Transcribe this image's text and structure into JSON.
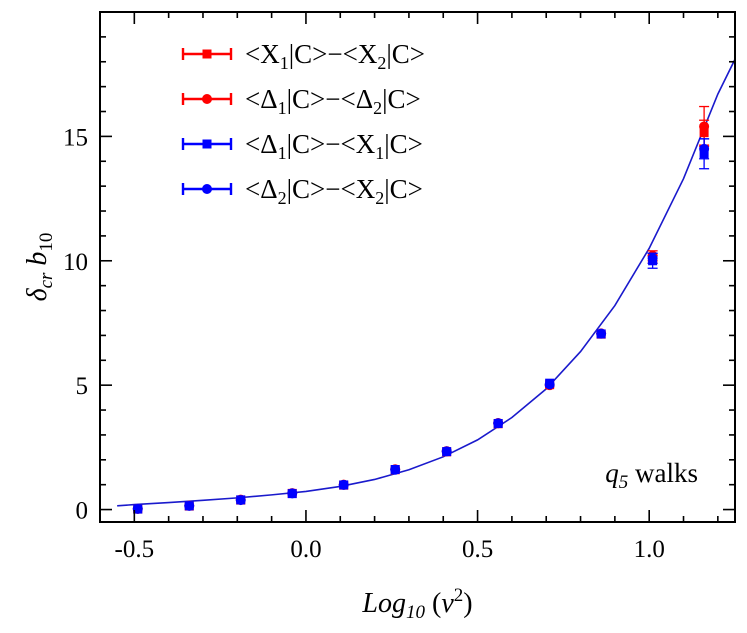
{
  "chart_data": {
    "type": "scatter",
    "title": "",
    "xlabel": "Log10 (ν²)",
    "ylabel": "δcr b10",
    "xlim": [
      -0.6,
      1.25
    ],
    "ylim": [
      -0.5,
      20
    ],
    "xticks": [
      -0.5,
      0.0,
      0.5,
      1.0
    ],
    "xtick_labels": [
      "-0.5",
      "0.0",
      "0.5",
      "1.0"
    ],
    "yticks": [
      0,
      5,
      10,
      15
    ],
    "ytick_labels": [
      "0",
      "5",
      "10",
      "15"
    ],
    "legend_position": "top-left",
    "annotation": "q5 walks",
    "fit_curve": {
      "name": "fit",
      "color": "#1a1acc",
      "x": [
        -0.55,
        -0.5,
        -0.4,
        -0.3,
        -0.2,
        -0.1,
        0.0,
        0.1,
        0.2,
        0.3,
        0.4,
        0.5,
        0.6,
        0.7,
        0.8,
        0.9,
        1.0,
        1.1,
        1.2,
        1.25
      ],
      "y": [
        0.15,
        0.2,
        0.28,
        0.37,
        0.47,
        0.59,
        0.73,
        0.93,
        1.21,
        1.6,
        2.12,
        2.8,
        3.7,
        4.85,
        6.35,
        8.2,
        10.5,
        13.3,
        16.7,
        18.1
      ]
    },
    "series": [
      {
        "name": "<X1|C>−<X2|C>",
        "legend_parts": {
          "pre": "<X",
          "sub1": "1",
          "mid": "|C>−<X",
          "sub2": "2",
          "post": "|C>"
        },
        "color": "#ff0000",
        "marker": "square",
        "x": [
          -0.49,
          -0.34,
          -0.19,
          -0.04,
          0.11,
          0.26,
          0.41,
          0.56,
          0.71,
          0.86,
          1.01,
          1.16
        ],
        "y": [
          0.02,
          0.14,
          0.38,
          0.65,
          0.98,
          1.6,
          2.32,
          3.45,
          5.02,
          7.05,
          10.05,
          15.15
        ],
        "err": [
          0,
          0,
          0,
          0,
          0,
          0,
          0,
          0,
          0,
          0,
          0.15,
          0.5
        ]
      },
      {
        "name": "<Δ1|C>−<Δ2|C>",
        "legend_parts": {
          "pre": "<Δ",
          "sub1": "1",
          "mid": "|C>−<Δ",
          "sub2": "2",
          "post": "|C>"
        },
        "color": "#ff0000",
        "marker": "circle",
        "x": [
          -0.49,
          -0.34,
          -0.19,
          -0.04,
          0.11,
          0.26,
          0.41,
          0.56,
          0.71,
          0.86,
          1.01,
          1.16
        ],
        "y": [
          0.03,
          0.16,
          0.4,
          0.66,
          1.0,
          1.62,
          2.35,
          3.48,
          5.0,
          7.08,
          10.2,
          15.4
        ],
        "err": [
          0,
          0,
          0,
          0,
          0,
          0,
          0,
          0,
          0,
          0,
          0.2,
          0.8
        ]
      },
      {
        "name": "<Δ1|C>−<X1|C>",
        "legend_parts": {
          "pre": "<Δ",
          "sub1": "1",
          "mid": "|C>−<X",
          "sub2": "1",
          "post": "|C>"
        },
        "color": "#0000ff",
        "marker": "square",
        "x": [
          -0.49,
          -0.34,
          -0.19,
          -0.04,
          0.11,
          0.26,
          0.41,
          0.56,
          0.71,
          0.86,
          1.01,
          1.16
        ],
        "y": [
          0.02,
          0.15,
          0.39,
          0.64,
          0.99,
          1.61,
          2.33,
          3.46,
          5.08,
          7.06,
          10.0,
          14.3
        ],
        "err": [
          0,
          0,
          0,
          0,
          0,
          0,
          0,
          0,
          0,
          0,
          0.3,
          0.6
        ]
      },
      {
        "name": "<Δ2|C>−<X2|C>",
        "legend_parts": {
          "pre": "<Δ",
          "sub1": "2",
          "mid": "|C>−<X",
          "sub2": "2",
          "post": "|C>"
        },
        "color": "#0000ff",
        "marker": "circle",
        "x": [
          -0.49,
          -0.34,
          -0.19,
          -0.04,
          0.11,
          0.26,
          0.41,
          0.56,
          0.71,
          0.86,
          1.01,
          1.16
        ],
        "y": [
          0.03,
          0.15,
          0.38,
          0.65,
          0.99,
          1.6,
          2.34,
          3.47,
          5.03,
          7.07,
          10.1,
          14.5
        ],
        "err": [
          0,
          0,
          0,
          0,
          0,
          0,
          0,
          0,
          0,
          0,
          0.2,
          0.4
        ]
      }
    ]
  }
}
